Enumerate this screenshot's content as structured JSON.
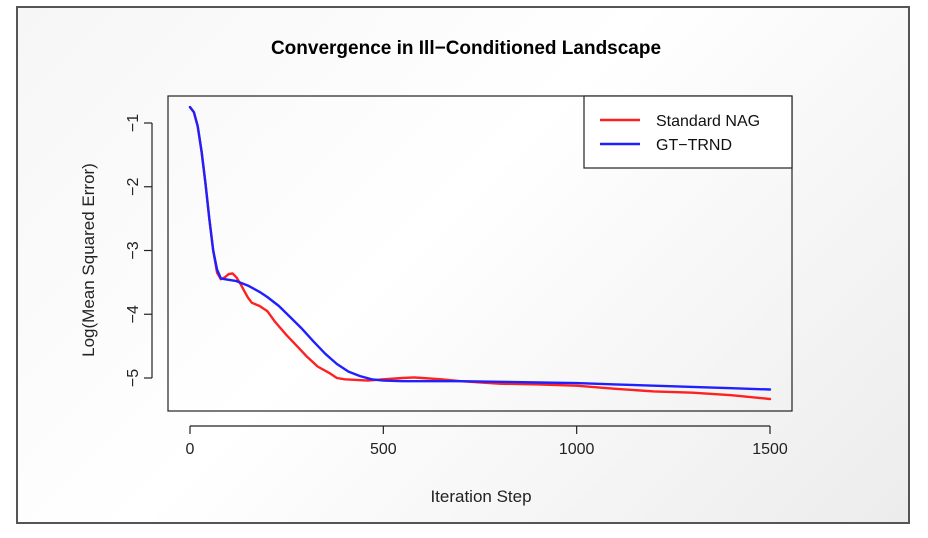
{
  "chart_data": {
    "type": "line",
    "title": "Convergence in Ill−Conditioned Landscape",
    "xlabel": "Iteration Step",
    "ylabel": "Log(Mean Squared Error)",
    "xlim": [
      0,
      1500
    ],
    "ylim": [
      -5.5,
      -0.6
    ],
    "xticks": [
      0,
      500,
      1000,
      1500
    ],
    "xtick_labels": [
      "0",
      "500",
      "1000",
      "1500"
    ],
    "yticks": [
      -1,
      -2,
      -3,
      -4,
      -5
    ],
    "ytick_labels": [
      "−1",
      "−2",
      "−3",
      "−4",
      "−5"
    ],
    "grid": false,
    "legend_position": "top-right",
    "series": [
      {
        "name": "Standard NAG",
        "color": "#ff2020",
        "x": [
          0,
          10,
          20,
          30,
          40,
          50,
          60,
          70,
          80,
          90,
          100,
          110,
          120,
          130,
          140,
          150,
          160,
          180,
          200,
          220,
          250,
          280,
          300,
          330,
          360,
          380,
          400,
          430,
          460,
          500,
          550,
          580,
          600,
          650,
          700,
          800,
          900,
          1000,
          1100,
          1200,
          1300,
          1400,
          1500
        ],
        "y": [
          -0.75,
          -0.83,
          -1.05,
          -1.45,
          -1.95,
          -2.5,
          -3.0,
          -3.35,
          -3.45,
          -3.42,
          -3.37,
          -3.36,
          -3.42,
          -3.52,
          -3.63,
          -3.74,
          -3.82,
          -3.87,
          -3.95,
          -4.12,
          -4.33,
          -4.52,
          -4.65,
          -4.82,
          -4.92,
          -5.0,
          -5.02,
          -5.03,
          -5.04,
          -5.02,
          -5.0,
          -4.99,
          -5.0,
          -5.02,
          -5.05,
          -5.09,
          -5.1,
          -5.12,
          -5.17,
          -5.21,
          -5.23,
          -5.27,
          -5.33
        ]
      },
      {
        "name": "GT−TRND",
        "color": "#2020ff",
        "x": [
          0,
          10,
          20,
          30,
          40,
          50,
          60,
          70,
          80,
          90,
          100,
          120,
          150,
          180,
          200,
          230,
          260,
          290,
          320,
          350,
          380,
          410,
          440,
          470,
          500,
          550,
          600,
          700,
          800,
          900,
          1000,
          1100,
          1200,
          1300,
          1400,
          1500
        ],
        "y": [
          -0.75,
          -0.83,
          -1.05,
          -1.45,
          -1.95,
          -2.5,
          -3.0,
          -3.3,
          -3.44,
          -3.45,
          -3.46,
          -3.48,
          -3.55,
          -3.65,
          -3.73,
          -3.87,
          -4.05,
          -4.23,
          -4.43,
          -4.62,
          -4.78,
          -4.9,
          -4.97,
          -5.02,
          -5.04,
          -5.05,
          -5.05,
          -5.05,
          -5.06,
          -5.07,
          -5.08,
          -5.1,
          -5.12,
          -5.14,
          -5.16,
          -5.18
        ]
      }
    ]
  }
}
